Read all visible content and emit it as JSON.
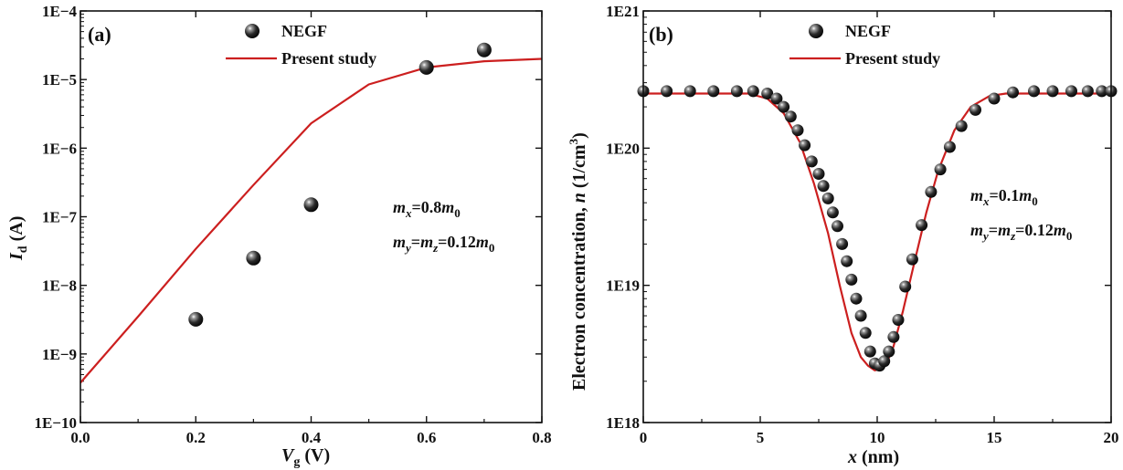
{
  "chart_data": [
    {
      "type": "scatter",
      "panel_label": "(a)",
      "xlabel_main": "V",
      "xlabel_sub": "g",
      "xlabel_unit": " (V)",
      "ylabel_main": "I",
      "ylabel_sub": "d",
      "ylabel_unit": " (A)",
      "xlim": [
        0,
        0.8
      ],
      "ylim": [
        1e-10,
        0.0001
      ],
      "yscale": "log",
      "xticks": [
        "0.0",
        "0.2",
        "0.4",
        "0.6",
        "0.8"
      ],
      "xtick_values": [
        0,
        0.2,
        0.4,
        0.6,
        0.8
      ],
      "yticks": [
        "1E−10",
        "1E−9",
        "1E−8",
        "1E−7",
        "1E−6",
        "1E−5",
        "1E−4"
      ],
      "ytick_values": [
        1e-10,
        1e-09,
        1e-08,
        1e-07,
        1e-06,
        1e-05,
        0.0001
      ],
      "legend_position": "top-center",
      "series": [
        {
          "name": "NEGF",
          "style": "markers",
          "color": "#111111",
          "x": [
            0.2,
            0.3,
            0.4,
            0.6,
            0.7
          ],
          "y": [
            3.2e-09,
            2.5e-08,
            1.5e-07,
            1.5e-05,
            2.7e-05
          ]
        },
        {
          "name": "Present study",
          "style": "line",
          "color": "#cc1f1f",
          "x": [
            0.0,
            0.1,
            0.2,
            0.3,
            0.4,
            0.5,
            0.6,
            0.7,
            0.8
          ],
          "y": [
            3.8e-10,
            3.5e-09,
            3.4e-08,
            2.9e-07,
            2.3e-06,
            8.5e-06,
            1.5e-05,
            1.85e-05,
            2e-05
          ]
        }
      ],
      "annotation": {
        "line1": {
          "m": "m",
          "sub": "x",
          "rest": "=0.8",
          "m2": "m",
          "sub2": "0"
        },
        "line2": {
          "m": "m",
          "sub": "y",
          "eq": "=",
          "m_b": "m",
          "sub_b": "z",
          "rest": "=0.12",
          "m2": "m",
          "sub2": "0"
        }
      }
    },
    {
      "type": "scatter",
      "panel_label": "(b)",
      "xlabel_main": "x",
      "xlabel_unit": " (nm)",
      "ylabel_text": "Electron concentration, ",
      "ylabel_var": "n",
      "ylabel_unit": " (1/cm",
      "ylabel_exp": "3",
      "ylabel_close": ")",
      "xlim": [
        0,
        20
      ],
      "ylim": [
        1e+18,
        1e+21
      ],
      "yscale": "log",
      "xticks": [
        "0",
        "5",
        "10",
        "15",
        "20"
      ],
      "xtick_values": [
        0,
        5,
        10,
        15,
        20
      ],
      "yticks": [
        "1E18",
        "1E19",
        "1E20",
        "1E21"
      ],
      "ytick_values": [
        1e+18,
        1e+19,
        1e+20,
        1e+21
      ],
      "legend_position": "top-center",
      "series": [
        {
          "name": "NEGF",
          "style": "markers",
          "color": "#111111",
          "x": [
            0,
            1,
            2,
            3,
            4,
            4.7,
            5.3,
            5.7,
            6.0,
            6.3,
            6.6,
            6.9,
            7.2,
            7.5,
            7.7,
            7.9,
            8.1,
            8.3,
            8.5,
            8.7,
            8.9,
            9.1,
            9.3,
            9.5,
            9.7,
            9.9,
            10.1,
            10.3,
            10.5,
            10.7,
            10.9,
            11.2,
            11.5,
            11.9,
            12.3,
            12.7,
            13.1,
            13.6,
            14.2,
            15.0,
            15.8,
            16.7,
            17.5,
            18.3,
            19.0,
            19.6,
            20.0
          ],
          "y": [
            2.6e+20,
            2.6e+20,
            2.6e+20,
            2.6e+20,
            2.6e+20,
            2.6e+20,
            2.5e+20,
            2.3e+20,
            2e+20,
            1.7e+20,
            1.35e+20,
            1.05e+20,
            8e+19,
            6.5e+19,
            5.3e+19,
            4.3e+19,
            3.4e+19,
            2.7e+19,
            2e+19,
            1.5e+19,
            1.1e+19,
            8e+18,
            6e+18,
            4.5e+18,
            3.3e+18,
            2.7e+18,
            2.6e+18,
            2.8e+18,
            3.3e+18,
            4.2e+18,
            5.6e+18,
            9.8e+18,
            1.55e+19,
            2.75e+19,
            4.8e+19,
            7e+19,
            1.02e+20,
            1.45e+20,
            1.9e+20,
            2.3e+20,
            2.55e+20,
            2.6e+20,
            2.6e+20,
            2.6e+20,
            2.6e+20,
            2.6e+20,
            2.6e+20
          ]
        },
        {
          "name": "Present study",
          "style": "line",
          "color": "#cc1f1f",
          "x": [
            0,
            4.5,
            5.3,
            6.0,
            6.7,
            7.3,
            7.9,
            8.4,
            8.9,
            9.3,
            9.6,
            9.9,
            10.1,
            10.4,
            10.7,
            11.1,
            11.6,
            12.1,
            12.6,
            13.3,
            14.0,
            14.8,
            15.5,
            20
          ],
          "y": [
            2.5e+20,
            2.5e+20,
            2.3e+20,
            1.8e+20,
            1.1e+20,
            5.5e+19,
            2.4e+19,
            1e+19,
            4.5e+18,
            3e+18,
            2.6e+18,
            2.4e+18,
            2.45e+18,
            2.7e+18,
            3.6e+18,
            6.5e+18,
            1.5e+19,
            3.4e+19,
            6.8e+19,
            1.35e+20,
            2e+20,
            2.4e+20,
            2.5e+20,
            2.5e+20
          ]
        }
      ],
      "annotation": {
        "line1": {
          "m": "m",
          "sub": "x",
          "rest": "=0.1",
          "m2": "m",
          "sub2": "0"
        },
        "line2": {
          "m": "m",
          "sub": "y",
          "eq": "=",
          "m_b": "m",
          "sub_b": "z",
          "rest": "=0.12",
          "m2": "m",
          "sub2": "0"
        }
      }
    }
  ]
}
